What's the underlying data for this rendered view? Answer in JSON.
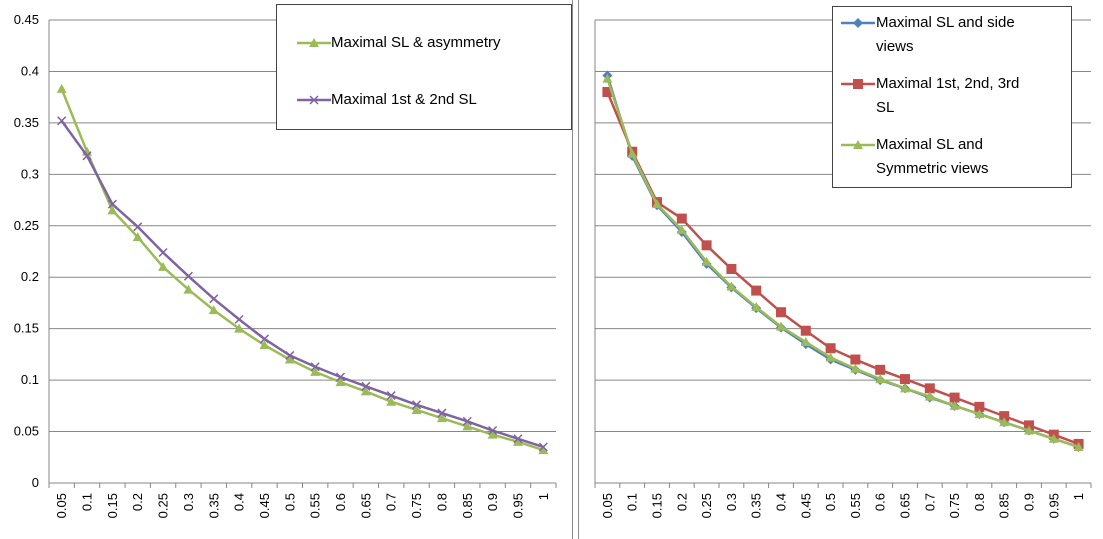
{
  "chart_data": [
    {
      "type": "line",
      "categories": [
        "0.05",
        "0.1",
        "0.15",
        "0.2",
        "0.25",
        "0.3",
        "0.35",
        "0.4",
        "0.45",
        "0.5",
        "0.55",
        "0.6",
        "0.65",
        "0.7",
        "0.75",
        "0.8",
        "0.85",
        "0.9",
        "0.95",
        "1"
      ],
      "yticks": [
        "0",
        "0.05",
        "0.1",
        "0.15",
        "0.2",
        "0.25",
        "0.3",
        "0.35",
        "0.4",
        "0.45"
      ],
      "ylim": [
        0,
        0.45
      ],
      "grid": true,
      "legend_position": "top-right",
      "series": [
        {
          "name": "Maximal SL & asymmetry",
          "color": "#9bbb59",
          "marker": "triangle",
          "values": [
            0.383,
            0.322,
            0.265,
            0.239,
            0.21,
            0.188,
            0.168,
            0.15,
            0.134,
            0.12,
            0.108,
            0.098,
            0.089,
            0.079,
            0.071,
            0.063,
            0.055,
            0.047,
            0.04,
            0.032
          ]
        },
        {
          "name": "Maximal 1st & 2nd SL",
          "color": "#8064a2",
          "marker": "x",
          "values": [
            0.352,
            0.318,
            0.271,
            0.249,
            0.224,
            0.201,
            0.179,
            0.159,
            0.14,
            0.124,
            0.113,
            0.103,
            0.094,
            0.085,
            0.076,
            0.068,
            0.06,
            0.051,
            0.043,
            0.035
          ]
        }
      ]
    },
    {
      "type": "line",
      "categories": [
        "0.05",
        "0.1",
        "0.15",
        "0.2",
        "0.25",
        "0.3",
        "0.35",
        "0.4",
        "0.45",
        "0.5",
        "0.55",
        "0.6",
        "0.65",
        "0.7",
        "0.75",
        "0.8",
        "0.85",
        "0.9",
        "0.95",
        "1"
      ],
      "ylim": [
        0,
        0.45
      ],
      "grid": true,
      "legend_position": "top-right",
      "series": [
        {
          "name": "Maximal SL and side views",
          "color": "#4f81bd",
          "marker": "diamond",
          "values": [
            0.396,
            0.318,
            0.27,
            0.244,
            0.213,
            0.19,
            0.17,
            0.151,
            0.135,
            0.12,
            0.11,
            0.1,
            0.092,
            0.083,
            0.075,
            0.067,
            0.059,
            0.051,
            0.043,
            0.035
          ]
        },
        {
          "name": "Maximal 1st, 2nd, 3rd SL",
          "color": "#c0504d",
          "marker": "square",
          "values": [
            0.38,
            0.322,
            0.273,
            0.257,
            0.231,
            0.208,
            0.187,
            0.166,
            0.148,
            0.131,
            0.12,
            0.11,
            0.101,
            0.092,
            0.083,
            0.074,
            0.065,
            0.056,
            0.047,
            0.038
          ]
        },
        {
          "name": "Maximal SL and Symmetric views",
          "color": "#9bbb59",
          "marker": "triangle",
          "values": [
            0.393,
            0.32,
            0.271,
            0.246,
            0.215,
            0.191,
            0.171,
            0.152,
            0.137,
            0.122,
            0.111,
            0.101,
            0.092,
            0.084,
            0.075,
            0.067,
            0.059,
            0.051,
            0.043,
            0.035
          ]
        }
      ]
    }
  ],
  "legend_left": [
    "Maximal SL & asymmetry",
    "Maximal 1st & 2nd SL"
  ],
  "legend_right": [
    "Maximal SL and side",
    "views",
    "Maximal 1st, 2nd, 3rd",
    "SL",
    "Maximal SL and",
    "Symmetric views"
  ]
}
